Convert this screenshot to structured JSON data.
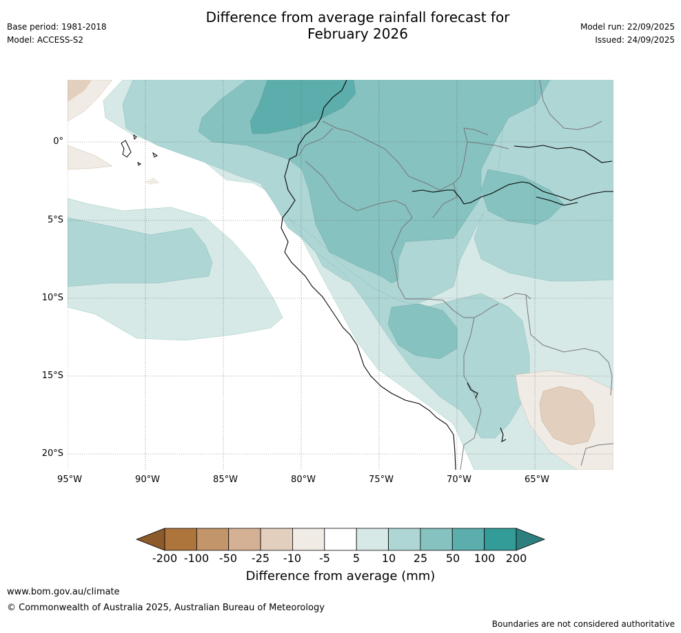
{
  "header": {
    "title_line1": "Difference from average rainfall forecast for",
    "title_line2": "February 2026",
    "base_period": "Base period: 1981-2018",
    "model": "Model: ACCESS-S2",
    "model_run": "Model run: 22/09/2025",
    "issued": "Issued: 24/09/2025"
  },
  "map": {
    "lat_labels": [
      "0°",
      "5°S",
      "10°S",
      "15°S",
      "20°S"
    ],
    "lon_labels": [
      "95°W",
      "90°W",
      "85°W",
      "80°W",
      "75°W",
      "70°W",
      "65°W"
    ],
    "colors": {
      "brown_dark": "#8c5a2b",
      "brown_lt1": "#f0ebe4",
      "brown_lt2": "#e3cfbd",
      "teal_lt1": "#d6e9e7",
      "teal_lt2": "#aed6d4",
      "teal_mid": "#85c2c0",
      "teal_dk": "#5caeac"
    }
  },
  "colorbar": {
    "labels": [
      "-200",
      "-100",
      "-50",
      "-25",
      "-10",
      "-5",
      "5",
      "10",
      "25",
      "50",
      "100",
      "200"
    ],
    "colors": [
      "#ad743c",
      "#c3956a",
      "#d4b194",
      "#e3cfbd",
      "#f0ebe4",
      "#ffffff",
      "#d6e9e7",
      "#aed6d4",
      "#85c2c0",
      "#5caeac",
      "#339c98"
    ],
    "low_extend_color": "#8c5a2b",
    "high_extend_color": "#2c7f7e",
    "title": "Difference from average (mm)"
  },
  "footer": {
    "website": "www.bom.gov.au/climate",
    "copyright": "© Commonwealth of Australia 2025, Australian Bureau of Meteorology",
    "disclaimer": "Boundaries are not considered authoritative"
  }
}
